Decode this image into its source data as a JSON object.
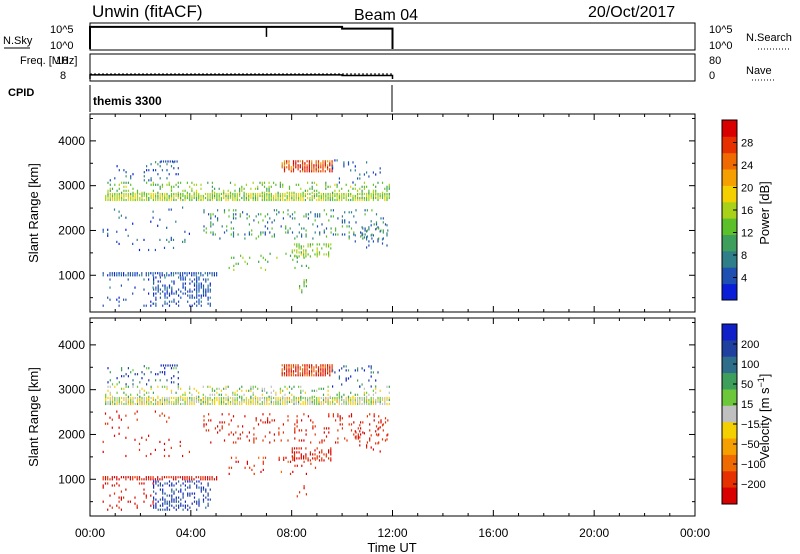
{
  "header": {
    "title": "Unwin (fitACF)",
    "beam": "Beam 04",
    "date": "20/Oct/2017"
  },
  "time_axis": {
    "label": "Time UT",
    "ticks": [
      "00:00",
      "04:00",
      "08:00",
      "12:00",
      "16:00",
      "20:00",
      "00:00"
    ],
    "range_hours": [
      0,
      24
    ],
    "data_end_hours": 12
  },
  "nsky_panel": {
    "left_label": "N.Sky",
    "right_label": "N.Search",
    "left_ticks": [
      "10^5",
      "10^0"
    ],
    "right_ticks": [
      "10^5",
      "10^0"
    ],
    "level_day": 5.0,
    "level_night": 4.6,
    "spike_hour": 7.0
  },
  "freq_panel": {
    "left_label": "Freq. [MHz]",
    "right_label": "Nave",
    "left_ticks": [
      "18",
      "8"
    ],
    "right_ticks": [
      "80",
      "0"
    ],
    "freq_segments": [
      {
        "start": 0,
        "end": 10,
        "value": 10.2
      },
      {
        "start": 10,
        "end": 12,
        "value": 9.8
      }
    ]
  },
  "cpid": {
    "label": "CPID",
    "value": "themis 3300"
  },
  "chart_data": [
    {
      "type": "heatmap",
      "name": "power-panel",
      "ylabel": "Slant Range [km]",
      "yticks": [
        1000,
        2000,
        3000,
        4000
      ],
      "ylim": [
        180,
        4600
      ],
      "xlim": [
        0,
        24
      ],
      "colorbar": {
        "label": "Power [dB]",
        "ticks": [
          "4",
          "8",
          "12",
          "16",
          "20",
          "24",
          "28"
        ],
        "colors": [
          "#0a1ed8",
          "#1f4fb0",
          "#2e7f8a",
          "#3e9e5c",
          "#5cc02a",
          "#a8d118",
          "#f5d000",
          "#f5a000",
          "#ef6a00",
          "#e63000",
          "#d90000"
        ]
      },
      "clusters": [
        {
          "t0": 0.6,
          "t1": 11.9,
          "r0": 2660,
          "r1": 2800,
          "d": 0.9,
          "cmin": 0.35,
          "cmax": 0.6
        },
        {
          "t0": 0.6,
          "t1": 11.9,
          "r0": 2820,
          "r1": 3050,
          "d": 0.25,
          "cmin": 0.3,
          "cmax": 0.55
        },
        {
          "t0": 0.6,
          "t1": 3.5,
          "r0": 3100,
          "r1": 3550,
          "d": 0.12,
          "cmin": 0.05,
          "cmax": 0.3
        },
        {
          "t0": 2.8,
          "t1": 3.5,
          "r0": 3520,
          "r1": 3560,
          "d": 0.9,
          "cmin": 0.05,
          "cmax": 0.12
        },
        {
          "t0": 7.6,
          "t1": 9.6,
          "r0": 3300,
          "r1": 3560,
          "d": 0.85,
          "cmin": 0.68,
          "cmax": 1.0
        },
        {
          "t0": 9.6,
          "t1": 11.5,
          "r0": 3050,
          "r1": 3550,
          "d": 0.12,
          "cmin": 0.05,
          "cmax": 0.25
        },
        {
          "t0": 4.5,
          "t1": 11.8,
          "r0": 1800,
          "r1": 2450,
          "d": 0.16,
          "cmin": 0.1,
          "cmax": 0.45
        },
        {
          "t0": 0.5,
          "t1": 4.0,
          "r0": 1500,
          "r1": 2500,
          "d": 0.05,
          "cmin": 0.05,
          "cmax": 0.3
        },
        {
          "t0": 8.0,
          "t1": 9.6,
          "r0": 1400,
          "r1": 1700,
          "d": 0.45,
          "cmin": 0.35,
          "cmax": 0.55
        },
        {
          "t0": 5.5,
          "t1": 9.0,
          "r0": 1100,
          "r1": 1500,
          "d": 0.1,
          "cmin": 0.3,
          "cmax": 0.5
        },
        {
          "t0": 0.5,
          "t1": 5.0,
          "r0": 980,
          "r1": 1050,
          "d": 0.8,
          "cmin": 0.05,
          "cmax": 0.22
        },
        {
          "t0": 2.5,
          "t1": 4.8,
          "r0": 300,
          "r1": 950,
          "d": 0.4,
          "cmin": 0.05,
          "cmax": 0.22
        },
        {
          "t0": 0.5,
          "t1": 2.5,
          "r0": 300,
          "r1": 900,
          "d": 0.1,
          "cmin": 0.05,
          "cmax": 0.2
        },
        {
          "t0": 8.2,
          "t1": 8.6,
          "r0": 600,
          "r1": 900,
          "d": 0.3,
          "cmin": 0.3,
          "cmax": 0.5
        },
        {
          "t0": 10.5,
          "t1": 11.8,
          "r0": 1600,
          "r1": 2200,
          "d": 0.15,
          "cmin": 0.1,
          "cmax": 0.25
        }
      ]
    },
    {
      "type": "heatmap",
      "name": "velocity-panel",
      "ylabel": "Slant Range [km]",
      "yticks": [
        1000,
        2000,
        3000,
        4000
      ],
      "ylim": [
        180,
        4600
      ],
      "xlim": [
        0,
        24
      ],
      "colorbar": {
        "label": "Velocity [m s^-1]",
        "ticks": [
          "200",
          "100",
          "50",
          "15",
          "-15",
          "-50",
          "-100",
          "-200"
        ],
        "colors": [
          "#1020c8",
          "#2040a0",
          "#2e6e8a",
          "#3e9e5c",
          "#6cc83a",
          "#c0c0c0",
          "#f5d000",
          "#f5a000",
          "#ef6a00",
          "#e63000",
          "#d90000"
        ]
      },
      "clusters": [
        {
          "t0": 0.6,
          "t1": 11.9,
          "r0": 2660,
          "r1": 2800,
          "d": 0.9,
          "cmin": 0.35,
          "cmax": 0.65
        },
        {
          "t0": 0.6,
          "t1": 11.9,
          "r0": 2820,
          "r1": 3050,
          "d": 0.25,
          "cmin": 0.3,
          "cmax": 0.6
        },
        {
          "t0": 0.6,
          "t1": 3.5,
          "r0": 3100,
          "r1": 3550,
          "d": 0.12,
          "cmin": 0.0,
          "cmax": 0.4
        },
        {
          "t0": 2.8,
          "t1": 3.5,
          "r0": 3520,
          "r1": 3560,
          "d": 0.9,
          "cmin": 0.0,
          "cmax": 0.15
        },
        {
          "t0": 7.6,
          "t1": 9.6,
          "r0": 3300,
          "r1": 3560,
          "d": 0.85,
          "cmin": 0.75,
          "cmax": 1.0
        },
        {
          "t0": 9.6,
          "t1": 11.5,
          "r0": 3050,
          "r1": 3550,
          "d": 0.12,
          "cmin": 0.0,
          "cmax": 0.35
        },
        {
          "t0": 4.5,
          "t1": 11.8,
          "r0": 1800,
          "r1": 2450,
          "d": 0.16,
          "cmin": 0.82,
          "cmax": 1.0
        },
        {
          "t0": 0.5,
          "t1": 4.0,
          "r0": 1500,
          "r1": 2500,
          "d": 0.05,
          "cmin": 0.82,
          "cmax": 1.0
        },
        {
          "t0": 8.0,
          "t1": 9.6,
          "r0": 1400,
          "r1": 1700,
          "d": 0.45,
          "cmin": 0.85,
          "cmax": 1.0
        },
        {
          "t0": 5.5,
          "t1": 9.0,
          "r0": 1100,
          "r1": 1500,
          "d": 0.1,
          "cmin": 0.8,
          "cmax": 1.0
        },
        {
          "t0": 0.5,
          "t1": 5.0,
          "r0": 980,
          "r1": 1050,
          "d": 0.8,
          "cmin": 0.85,
          "cmax": 1.0
        },
        {
          "t0": 2.5,
          "t1": 4.8,
          "r0": 300,
          "r1": 950,
          "d": 0.4,
          "cmin": 0.0,
          "cmax": 0.25
        },
        {
          "t0": 0.5,
          "t1": 2.5,
          "r0": 300,
          "r1": 900,
          "d": 0.1,
          "cmin": 0.85,
          "cmax": 1.0
        },
        {
          "t0": 8.2,
          "t1": 8.6,
          "r0": 600,
          "r1": 900,
          "d": 0.3,
          "cmin": 0.85,
          "cmax": 1.0
        },
        {
          "t0": 10.5,
          "t1": 11.8,
          "r0": 1600,
          "r1": 2200,
          "d": 0.15,
          "cmin": 0.85,
          "cmax": 1.0
        }
      ]
    }
  ]
}
